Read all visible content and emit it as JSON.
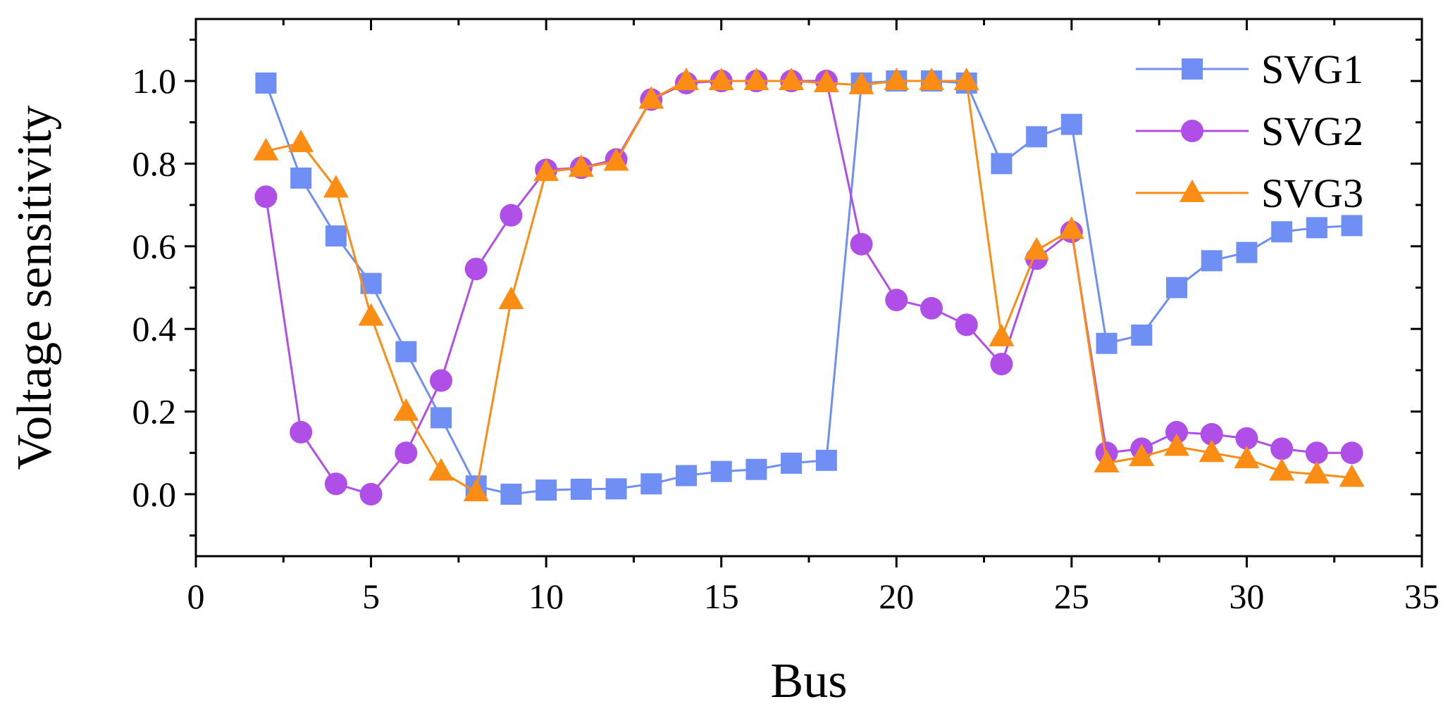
{
  "chart_data": {
    "type": "line",
    "xlabel": "Bus",
    "ylabel": "Voltage sensitivity",
    "xlim": [
      0,
      35
    ],
    "ylim": [
      -0.15,
      1.15
    ],
    "xticks": [
      0,
      5,
      10,
      15,
      20,
      25,
      30,
      35
    ],
    "xtick_labels": [
      "0",
      "5",
      "10",
      "15",
      "20",
      "25",
      "30",
      "35"
    ],
    "yticks": [
      0.0,
      0.2,
      0.4,
      0.6,
      0.8,
      1.0
    ],
    "ytick_labels": [
      "0.0",
      "0.2",
      "0.4",
      "0.6",
      "0.8",
      "1.0"
    ],
    "legend_position": "top-right",
    "x": [
      2,
      3,
      4,
      5,
      6,
      7,
      8,
      9,
      10,
      11,
      12,
      13,
      14,
      15,
      16,
      17,
      18,
      19,
      20,
      21,
      22,
      23,
      24,
      25,
      26,
      27,
      28,
      29,
      30,
      31,
      32,
      33
    ],
    "series": [
      {
        "name": "SVG1",
        "color": "#6f8ff5",
        "marker": "square",
        "values": [
          0.995,
          0.765,
          0.625,
          0.51,
          0.345,
          0.185,
          0.02,
          0.0,
          0.01,
          0.012,
          0.013,
          0.025,
          0.045,
          0.055,
          0.06,
          0.075,
          0.082,
          0.995,
          1.0,
          1.0,
          0.995,
          0.8,
          0.865,
          0.895,
          0.365,
          0.385,
          0.5,
          0.565,
          0.585,
          0.635,
          0.645,
          0.65
        ]
      },
      {
        "name": "SVG2",
        "color": "#b04ee8",
        "marker": "circle",
        "values": [
          0.72,
          0.15,
          0.025,
          0.0,
          0.1,
          0.275,
          0.545,
          0.675,
          0.785,
          0.79,
          0.81,
          0.955,
          0.995,
          1.0,
          1.0,
          1.0,
          1.0,
          0.605,
          0.47,
          0.45,
          0.41,
          0.315,
          0.57,
          0.635,
          0.1,
          0.11,
          0.15,
          0.145,
          0.135,
          0.11,
          0.1,
          0.1
        ]
      },
      {
        "name": "SVG3",
        "color": "#fb8c14",
        "marker": "triangle",
        "values": [
          0.83,
          0.85,
          0.74,
          0.43,
          0.2,
          0.055,
          0.005,
          0.47,
          0.78,
          0.79,
          0.805,
          0.955,
          1.0,
          1.0,
          1.0,
          1.0,
          0.995,
          0.99,
          1.0,
          1.0,
          1.0,
          0.38,
          0.59,
          0.64,
          0.075,
          0.09,
          0.115,
          0.1,
          0.085,
          0.055,
          0.048,
          0.04
        ]
      }
    ]
  }
}
